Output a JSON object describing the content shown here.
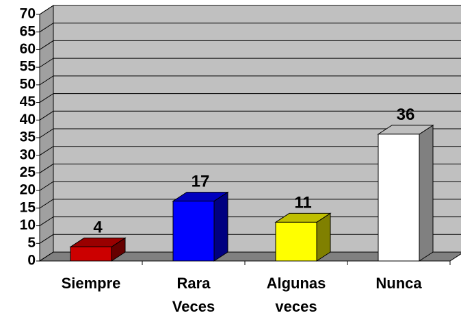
{
  "chart_data": {
    "type": "bar3d",
    "categories": [
      "Siempre",
      "Rara Veces",
      "Algunas veces",
      "Nunca"
    ],
    "values": [
      4,
      17,
      11,
      36
    ],
    "colors": [
      "#cc0000",
      "#0000ff",
      "#ffff00",
      "#ffffff"
    ],
    "ylim": [
      0,
      70
    ],
    "yticks": [
      0,
      5,
      10,
      15,
      20,
      25,
      30,
      35,
      40,
      45,
      50,
      55,
      60,
      65,
      70
    ],
    "grid": true
  }
}
